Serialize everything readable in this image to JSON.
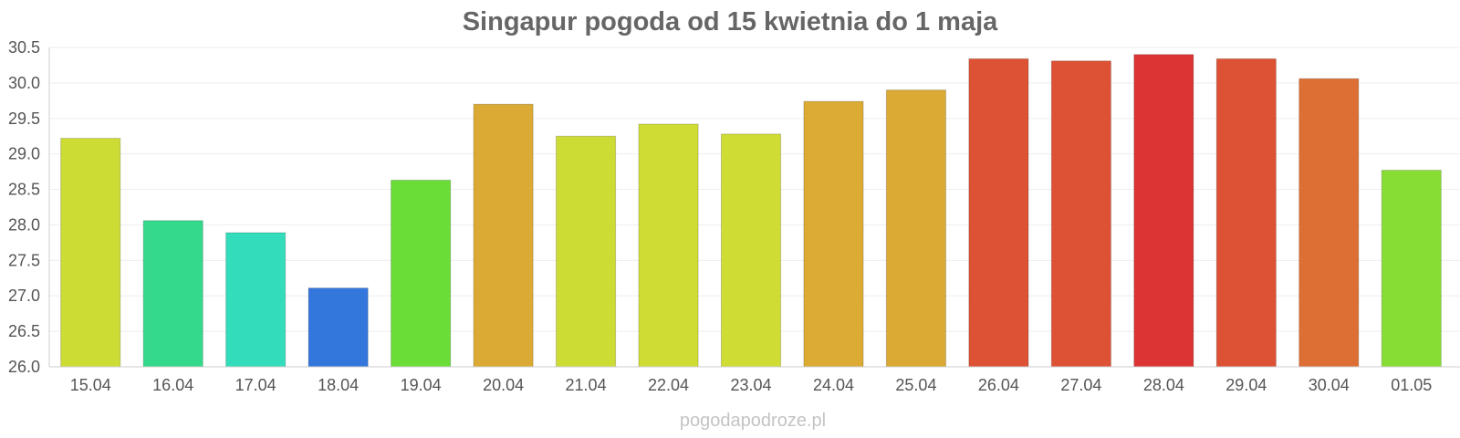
{
  "chart_data": {
    "type": "bar",
    "title": "Singapur pogoda od 15 kwietnia do 1 maja",
    "xlabel": "",
    "ylabel": "",
    "categories": [
      "15.04",
      "16.04",
      "17.04",
      "18.04",
      "19.04",
      "20.04",
      "21.04",
      "22.04",
      "23.04",
      "24.04",
      "25.04",
      "26.04",
      "27.04",
      "28.04",
      "29.04",
      "30.04",
      "01.05"
    ],
    "values": [
      29.22,
      28.06,
      27.89,
      27.11,
      28.63,
      29.7,
      29.25,
      29.42,
      29.28,
      29.74,
      29.9,
      30.34,
      30.31,
      30.4,
      30.34,
      30.06,
      28.77
    ],
    "colors": [
      "#cddc35",
      "#34d98b",
      "#33dcbb",
      "#3477dc",
      "#6add37",
      "#dbaa34",
      "#cddc35",
      "#cfdc34",
      "#cfdc34",
      "#dbab34",
      "#dbaa34",
      "#dd5134",
      "#dd5134",
      "#dc3434",
      "#dd5134",
      "#dd6f34",
      "#88dd34"
    ],
    "ylim": [
      26.0,
      30.5
    ],
    "yticks": [
      "26.0",
      "26.5",
      "27.0",
      "27.5",
      "28.0",
      "28.5",
      "29.0",
      "29.5",
      "30.0",
      "30.5"
    ],
    "grid": true,
    "legend": "none"
  },
  "watermark": "pogodapodroze.pl"
}
